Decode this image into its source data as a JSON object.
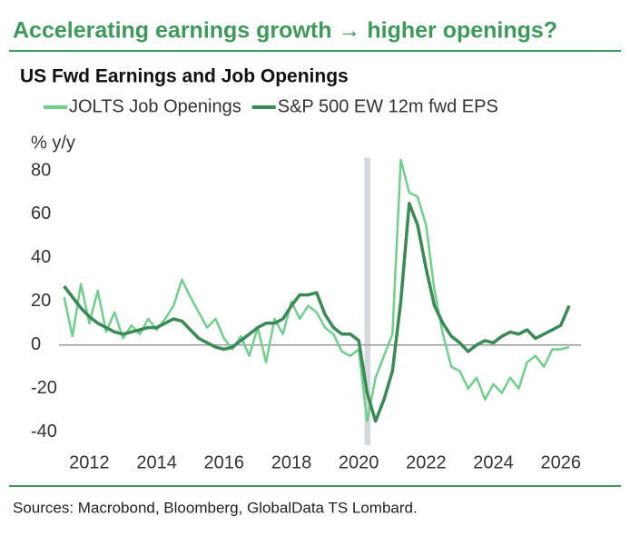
{
  "chart_data": {
    "type": "line",
    "title": "Accelerating earnings growth → higher openings?",
    "subtitle": "US Fwd Earnings and Job Openings",
    "y_label": "% y/y",
    "source": "Sources: Macrobond, Bloomberg, GlobalData TS Lombard.",
    "x": [
      2011.25,
      2011.5,
      2011.75,
      2012,
      2012.25,
      2012.5,
      2012.75,
      2013,
      2013.25,
      2013.5,
      2013.75,
      2014,
      2014.25,
      2014.5,
      2014.75,
      2015,
      2015.25,
      2015.5,
      2015.75,
      2016,
      2016.25,
      2016.5,
      2016.75,
      2017,
      2017.25,
      2017.5,
      2017.75,
      2018,
      2018.25,
      2018.5,
      2018.75,
      2019,
      2019.25,
      2019.5,
      2019.75,
      2020,
      2020.25,
      2020.5,
      2020.75,
      2021,
      2021.25,
      2021.5,
      2021.75,
      2022,
      2022.25,
      2022.5,
      2022.75,
      2023,
      2023.25,
      2023.5,
      2023.75,
      2024,
      2024.25,
      2024.5,
      2024.75,
      2025,
      2025.25,
      2025.5,
      2025.75,
      2026,
      2026.25
    ],
    "series": [
      {
        "name": "JOLTS Job Openings",
        "color": "#6fd08c",
        "values": [
          22,
          4,
          28,
          10,
          25,
          6,
          15,
          3,
          9,
          5,
          12,
          7,
          12,
          18,
          30,
          22,
          15,
          8,
          12,
          3,
          -2,
          4,
          -5,
          8,
          -8,
          12,
          5,
          20,
          12,
          18,
          15,
          8,
          5,
          -3,
          -5,
          -2,
          -35,
          -15,
          -5,
          5,
          85,
          70,
          68,
          55,
          25,
          5,
          -10,
          -12,
          -20,
          -15,
          -25,
          -18,
          -22,
          -15,
          -20,
          -8,
          -5,
          -10,
          -2,
          -2,
          -1
        ]
      },
      {
        "name": "S&P 500 EW 12m fwd EPS",
        "color": "#3a8a56",
        "values": [
          27,
          22,
          17,
          13,
          10,
          8,
          6,
          5,
          6,
          7,
          8,
          8,
          10,
          12,
          11,
          7,
          3,
          1,
          -1,
          -2,
          -1,
          2,
          5,
          8,
          10,
          10,
          12,
          18,
          23,
          23,
          24,
          14,
          8,
          5,
          5,
          2,
          -22,
          -35,
          -25,
          -12,
          20,
          65,
          55,
          35,
          18,
          10,
          4,
          1,
          -3,
          0,
          2,
          1,
          4,
          6,
          5,
          7,
          3,
          5,
          7,
          9,
          18
        ]
      }
    ],
    "shade": [
      2020.17,
      2020.35
    ],
    "xlim": [
      2011.1,
      2026.6
    ],
    "xticks": [
      2012,
      2014,
      2016,
      2018,
      2020,
      2022,
      2024,
      2026
    ],
    "ylim": [
      -46,
      86
    ],
    "yticks": [
      80,
      60,
      40,
      20,
      0,
      -20,
      -40
    ]
  }
}
